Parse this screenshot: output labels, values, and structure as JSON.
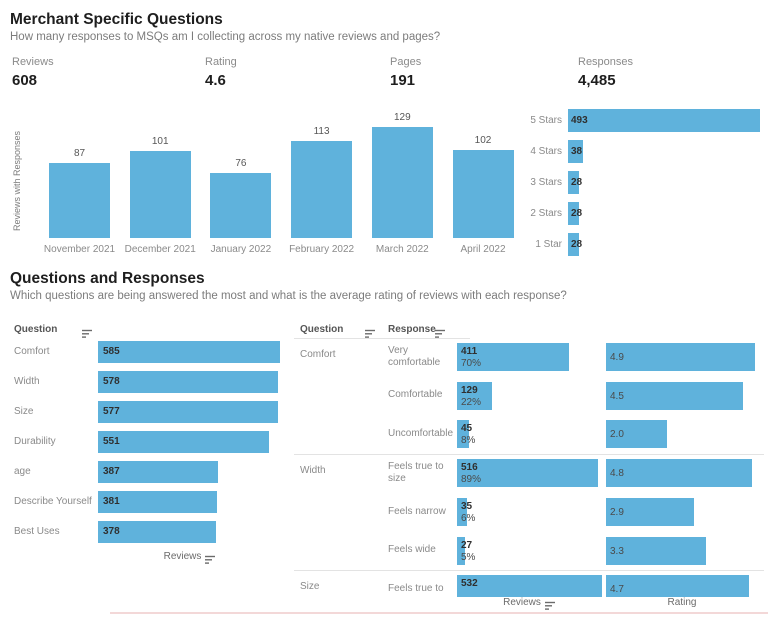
{
  "colors": {
    "bar": "#5FB2DC",
    "accent_line": "#F3D8D8"
  },
  "sections": {
    "merchant": {
      "title": "Merchant Specific Questions",
      "subtitle": "How many responses to MSQs am I collecting across my native reviews and pages?"
    },
    "questions": {
      "title": "Questions and Responses",
      "subtitle": "Which questions are being answered the most and what is the average rating of reviews with each response?"
    }
  },
  "kpis": [
    {
      "label": "Reviews",
      "value": "608"
    },
    {
      "label": "Rating",
      "value": "4.6"
    },
    {
      "label": "Pages",
      "value": "191"
    },
    {
      "label": "Responses",
      "value": "4,485"
    }
  ],
  "chart_data": [
    {
      "id": "reviews-by-month",
      "type": "bar",
      "title": "",
      "xlabel": "",
      "ylabel": "Reviews with Responses",
      "categories": [
        "November 2021",
        "December 2021",
        "January 2022",
        "February 2022",
        "March 2022",
        "April 2022"
      ],
      "values": [
        87,
        101,
        76,
        113,
        129,
        102
      ],
      "ylim": [
        0,
        129
      ],
      "grid": false,
      "value_labels": true
    },
    {
      "id": "responses-by-stars",
      "type": "bar",
      "orientation": "horizontal",
      "title": "",
      "categories": [
        "5 Stars",
        "4 Stars",
        "3 Stars",
        "2 Stars",
        "1 Star"
      ],
      "values": [
        493,
        38,
        28,
        28,
        28
      ],
      "xlim": [
        0,
        493
      ],
      "grid": false,
      "value_labels": true
    },
    {
      "id": "reviews-by-question",
      "type": "bar",
      "orientation": "horizontal",
      "column_header": "Question",
      "xlabel": "Reviews",
      "sortable": true,
      "categories": [
        "Comfort",
        "Width",
        "Size",
        "Durability",
        "age",
        "Describe Yourself",
        "Best Uses"
      ],
      "values": [
        585,
        578,
        577,
        551,
        387,
        381,
        378
      ],
      "xlim": [
        0,
        600
      ],
      "grid": false,
      "value_labels": true
    },
    {
      "id": "responses-and-ratings",
      "type": "table",
      "column_headers": [
        "Question",
        "Response"
      ],
      "xlabels": [
        "Reviews",
        "Rating"
      ],
      "sortable": true,
      "rating_xlim": [
        0,
        5
      ],
      "reviews_xlim": [
        0,
        540
      ],
      "groups": [
        {
          "question": "Comfort",
          "rows": [
            {
              "response": "Very comfortable",
              "reviews": 411,
              "pct": "70%",
              "rating": "4.9"
            },
            {
              "response": "Comfortable",
              "reviews": 129,
              "pct": "22%",
              "rating": "4.5"
            },
            {
              "response": "Uncomfortable",
              "reviews": 45,
              "pct": "8%",
              "rating": "2.0"
            }
          ]
        },
        {
          "question": "Width",
          "rows": [
            {
              "response": "Feels true to size",
              "reviews": 516,
              "pct": "89%",
              "rating": "4.8"
            },
            {
              "response": "Feels narrow",
              "reviews": 35,
              "pct": "6%",
              "rating": "2.9"
            },
            {
              "response": "Feels wide",
              "reviews": 27,
              "pct": "5%",
              "rating": "3.3"
            }
          ]
        },
        {
          "question": "Size",
          "rows": [
            {
              "response": "Feels true to",
              "reviews": 532,
              "pct": "",
              "rating": "4.7"
            }
          ]
        }
      ]
    }
  ]
}
